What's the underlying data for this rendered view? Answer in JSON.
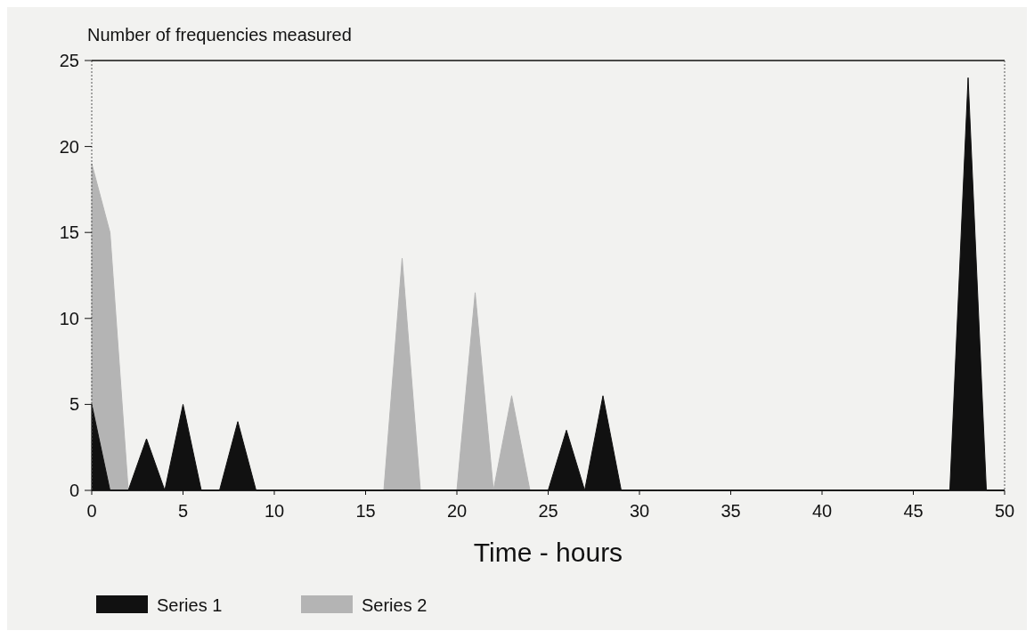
{
  "chart_data": {
    "type": "area",
    "ylabel": "Number of frequencies measured",
    "xlabel": "Time - hours",
    "x": [
      0,
      1,
      2,
      3,
      4,
      5,
      6,
      7,
      8,
      9,
      10,
      11,
      12,
      13,
      14,
      15,
      16,
      17,
      18,
      19,
      20,
      21,
      22,
      23,
      24,
      25,
      26,
      27,
      28,
      29,
      30,
      31,
      32,
      33,
      34,
      35,
      36,
      37,
      38,
      39,
      40,
      41,
      42,
      43,
      44,
      45,
      46,
      47,
      48,
      49,
      50
    ],
    "series": [
      {
        "name": "Series 1",
        "color": "#111111",
        "values": [
          5,
          0,
          0,
          3,
          0,
          5,
          0,
          0,
          4,
          0,
          0,
          0,
          0,
          0,
          0,
          0,
          0,
          0,
          0,
          0,
          0,
          0,
          0,
          0,
          0,
          0,
          3.5,
          0,
          5.5,
          0,
          0,
          0,
          0,
          0,
          0,
          0,
          0,
          0,
          0,
          0,
          0,
          0,
          0,
          0,
          0,
          0,
          0,
          0,
          24,
          0,
          0
        ]
      },
      {
        "name": "Series 2",
        "color": "#b4b4b4",
        "values": [
          19,
          15,
          0,
          0,
          0,
          0,
          0,
          0,
          0,
          0,
          0,
          0,
          0,
          0,
          0,
          0,
          0,
          13.5,
          0,
          0,
          0,
          11.5,
          0,
          5.5,
          0,
          0,
          0,
          0,
          0,
          0,
          0,
          0,
          0,
          0,
          0,
          0,
          0,
          0,
          0,
          0,
          0,
          0,
          0,
          0,
          0,
          0,
          0,
          0,
          0,
          0,
          0
        ]
      }
    ],
    "xlim": [
      0,
      50
    ],
    "xticks": [
      0,
      5,
      10,
      15,
      20,
      25,
      30,
      35,
      40,
      45,
      50
    ],
    "ylim": [
      0,
      25
    ],
    "yticks": [
      0,
      5,
      10,
      15,
      20,
      25
    ],
    "legend": "bottom left"
  }
}
